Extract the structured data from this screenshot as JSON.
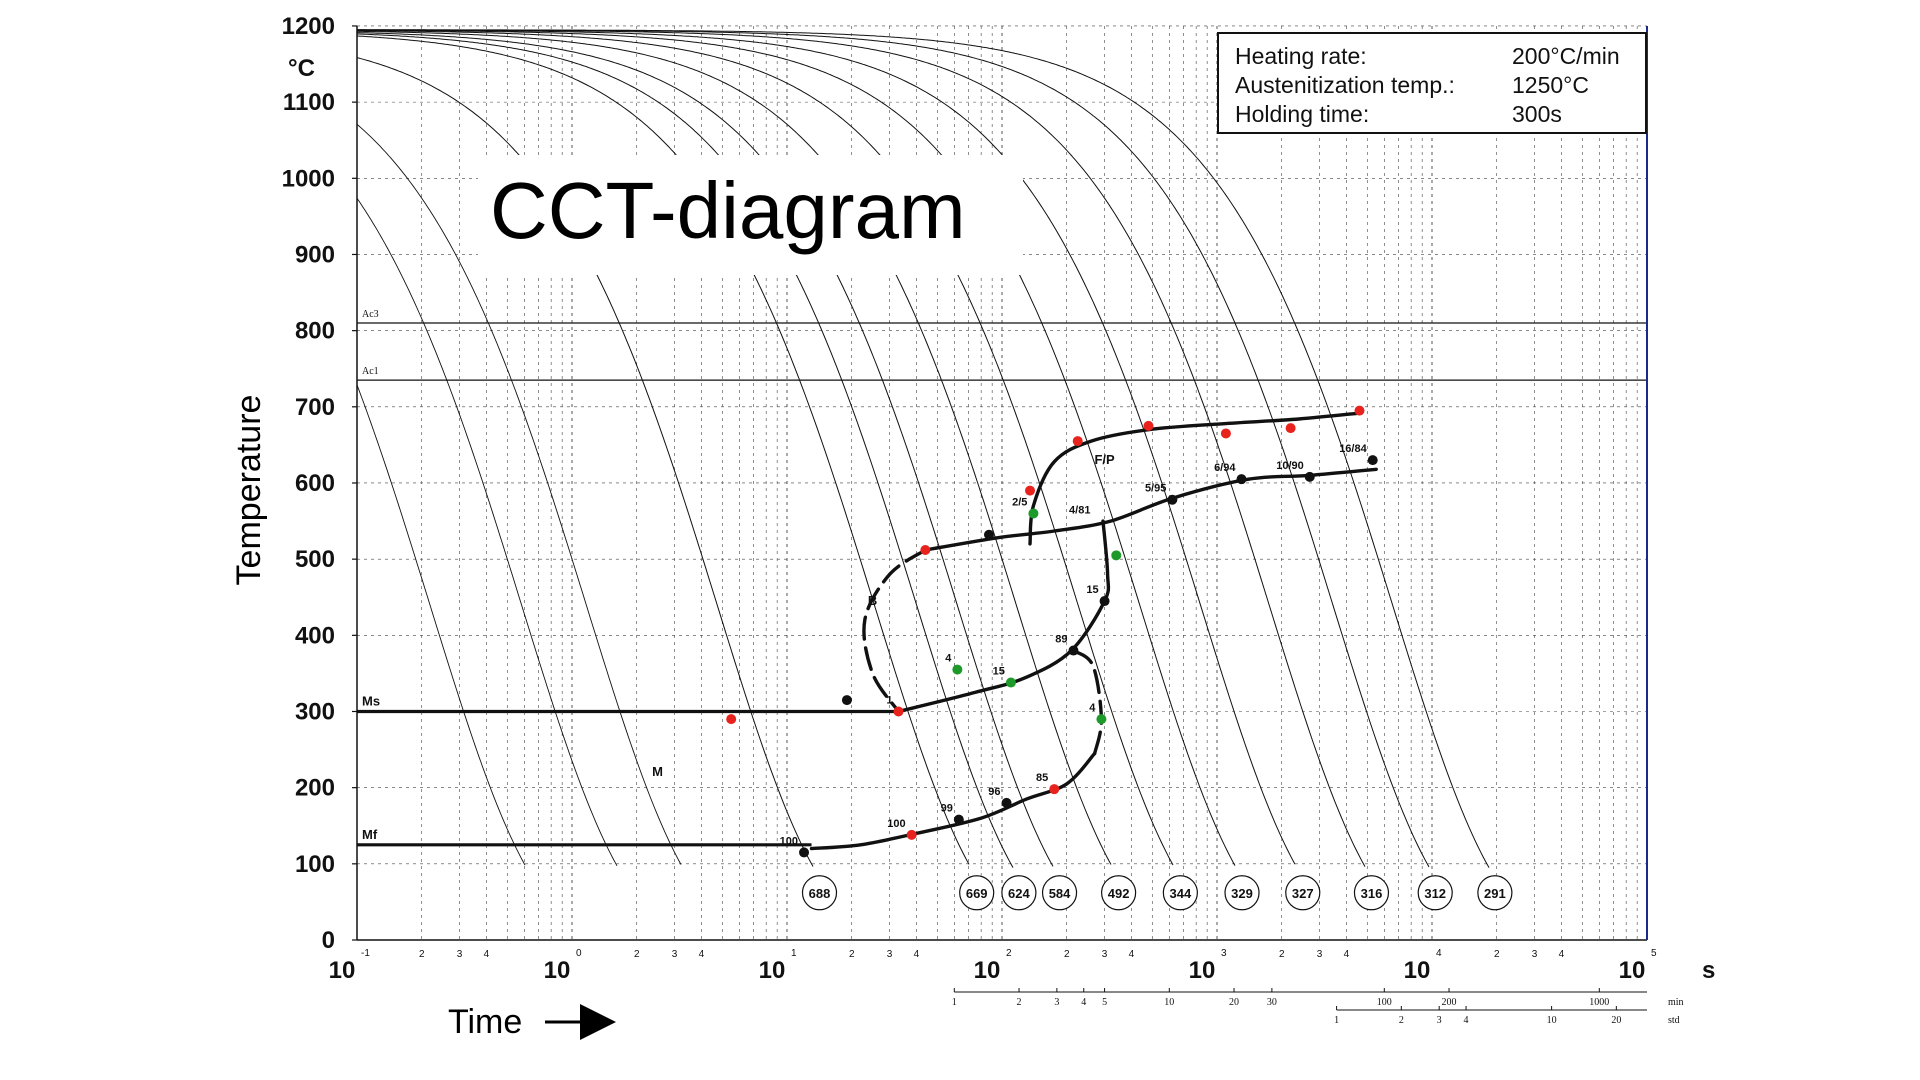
{
  "banner": {
    "title": "CCT-diagram"
  },
  "info_box": {
    "rows": [
      {
        "label": "Heating rate:",
        "value": "200°C/min"
      },
      {
        "label": "Austenitization temp.:",
        "value": "1250°C"
      },
      {
        "label": "Holding time:",
        "value": "300s"
      }
    ]
  },
  "axes": {
    "y_title": "Temperature",
    "y_unit": "°C",
    "x_title": "Time",
    "x_unit": "s",
    "y_ticks": [
      "0",
      "100",
      "200",
      "300",
      "400",
      "500",
      "600",
      "700",
      "800",
      "900",
      "1000",
      "1100",
      "1200"
    ],
    "x_decade_base": "10",
    "x_decade_exponents": [
      "-1",
      "0",
      "1",
      "2",
      "3",
      "4",
      "5"
    ],
    "x_minor_labels": [
      "2",
      "3",
      "4"
    ],
    "minutes_scale": {
      "unit": "min",
      "labels": [
        "1",
        "2",
        "3",
        "4",
        "5",
        "10",
        "20",
        "30",
        "100",
        "200",
        "1000"
      ]
    },
    "hours_scale": {
      "unit": "std",
      "labels": [
        "1",
        "2",
        "3",
        "4",
        "10",
        "20"
      ]
    }
  },
  "colors": {
    "curve": "#111111",
    "grid": "#444444",
    "start_point": "#e8221c",
    "mid_point": "#1e9a2a",
    "end_point": "#111111"
  },
  "chart_data": {
    "type": "line",
    "x_scale": "log",
    "xlim": [
      0.1,
      100000
    ],
    "ylim": [
      0,
      1200
    ],
    "reference_lines": [
      {
        "label": "Ac3",
        "y": 810
      },
      {
        "label": "Ac1",
        "y": 735
      },
      {
        "label": "Ms",
        "y": 300
      },
      {
        "label": "Mf",
        "y": 125
      }
    ],
    "phase_labels": [
      {
        "text": "F/P",
        "x": 300,
        "y": 625
      },
      {
        "text": "B",
        "x": 25,
        "y": 440
      },
      {
        "text": "M",
        "x": 2.5,
        "y": 215
      }
    ],
    "cooling_curves": [
      {
        "hardness": "688",
        "t100": 13
      },
      {
        "hardness": "669",
        "t100": 70
      },
      {
        "hardness": "624",
        "t100": 110
      },
      {
        "hardness": "584",
        "t100": 170
      },
      {
        "hardness": "492",
        "t100": 320
      },
      {
        "hardness": "344",
        "t100": 620
      },
      {
        "hardness": "329",
        "t100": 1200
      },
      {
        "hardness": "327",
        "t100": 2300
      },
      {
        "hardness": "316",
        "t100": 4800
      },
      {
        "hardness": "312",
        "t100": 9500
      },
      {
        "hardness": "291",
        "t100": 18000
      }
    ],
    "transformation_boundaries": [
      {
        "name": "ferrite-pearlite start",
        "style": "solid",
        "points": [
          [
            135,
            520
          ],
          [
            140,
            570
          ],
          [
            175,
            628
          ],
          [
            260,
            655
          ],
          [
            480,
            670
          ],
          [
            1100,
            678
          ],
          [
            2400,
            684
          ],
          [
            4700,
            692
          ]
        ]
      },
      {
        "name": "ferrite-pearlite finish / bainite start",
        "style": "solid",
        "points": [
          [
            44,
            512
          ],
          [
            95,
            528
          ],
          [
            175,
            537
          ],
          [
            320,
            550
          ],
          [
            620,
            580
          ],
          [
            1400,
            605
          ],
          [
            2700,
            610
          ],
          [
            5500,
            618
          ]
        ]
      },
      {
        "name": "bainite start",
        "style": "dashed",
        "points": [
          [
            44,
            512
          ],
          [
            30,
            480
          ],
          [
            23,
            420
          ],
          [
            25,
            350
          ],
          [
            33,
            300
          ]
        ]
      },
      {
        "name": "bainite finish",
        "style": "solid",
        "points": [
          [
            33,
            300
          ],
          [
            75,
            325
          ],
          [
            130,
            345
          ],
          [
            210,
            380
          ],
          [
            300,
            445
          ],
          [
            310,
            480
          ],
          [
            295,
            550
          ]
        ]
      },
      {
        "name": "martensite finish region",
        "style": "solid",
        "points": [
          [
            13,
            120
          ],
          [
            22,
            125
          ],
          [
            40,
            140
          ],
          [
            80,
            160
          ],
          [
            130,
            185
          ],
          [
            200,
            205
          ],
          [
            270,
            245
          ]
        ]
      },
      {
        "name": "martensite lower boundary",
        "style": "dashed",
        "points": [
          [
            270,
            245
          ],
          [
            290,
            290
          ],
          [
            265,
            360
          ],
          [
            215,
            380
          ]
        ]
      }
    ],
    "markers": [
      {
        "x": 5.5,
        "y": 290,
        "kind": "start"
      },
      {
        "x": 12,
        "y": 115,
        "kind": "end",
        "label": "100"
      },
      {
        "x": 19,
        "y": 315,
        "kind": "end"
      },
      {
        "x": 33,
        "y": 300,
        "kind": "start",
        "label": "1"
      },
      {
        "x": 38,
        "y": 138,
        "kind": "start",
        "label": "100"
      },
      {
        "x": 44,
        "y": 512,
        "kind": "start"
      },
      {
        "x": 62,
        "y": 355,
        "kind": "mid",
        "label": "4"
      },
      {
        "x": 63,
        "y": 158,
        "kind": "end",
        "label": "99"
      },
      {
        "x": 87,
        "y": 532,
        "kind": "end"
      },
      {
        "x": 110,
        "y": 338,
        "kind": "mid",
        "label": "15"
      },
      {
        "x": 105,
        "y": 180,
        "kind": "end",
        "label": "96"
      },
      {
        "x": 140,
        "y": 560,
        "kind": "mid",
        "label": "2/5"
      },
      {
        "x": 135,
        "y": 590,
        "kind": "start"
      },
      {
        "x": 175,
        "y": 198,
        "kind": "start",
        "label": "85"
      },
      {
        "x": 215,
        "y": 380,
        "kind": "end",
        "label": "89"
      },
      {
        "x": 225,
        "y": 655,
        "kind": "start"
      },
      {
        "x": 340,
        "y": 505,
        "kind": "mid"
      },
      {
        "x": 300,
        "y": 445,
        "kind": "end",
        "label": "15"
      },
      {
        "x": 290,
        "y": 290,
        "kind": "mid",
        "label": "4"
      },
      {
        "x": 480,
        "y": 675,
        "kind": "start"
      },
      {
        "x": 620,
        "y": 578,
        "kind": "end",
        "label": "5/95"
      },
      {
        "x": 1100,
        "y": 665,
        "kind": "start"
      },
      {
        "x": 1300,
        "y": 605,
        "kind": "end",
        "label": "6/94"
      },
      {
        "x": 2200,
        "y": 672,
        "kind": "start"
      },
      {
        "x": 2700,
        "y": 608,
        "kind": "end",
        "label": "10/90"
      },
      {
        "x": 4600,
        "y": 695,
        "kind": "start"
      },
      {
        "x": 5300,
        "y": 630,
        "kind": "end",
        "label": "16/84"
      }
    ],
    "misc_annotations": [
      {
        "text": "4/81",
        "x": 230,
        "y": 560
      }
    ]
  }
}
